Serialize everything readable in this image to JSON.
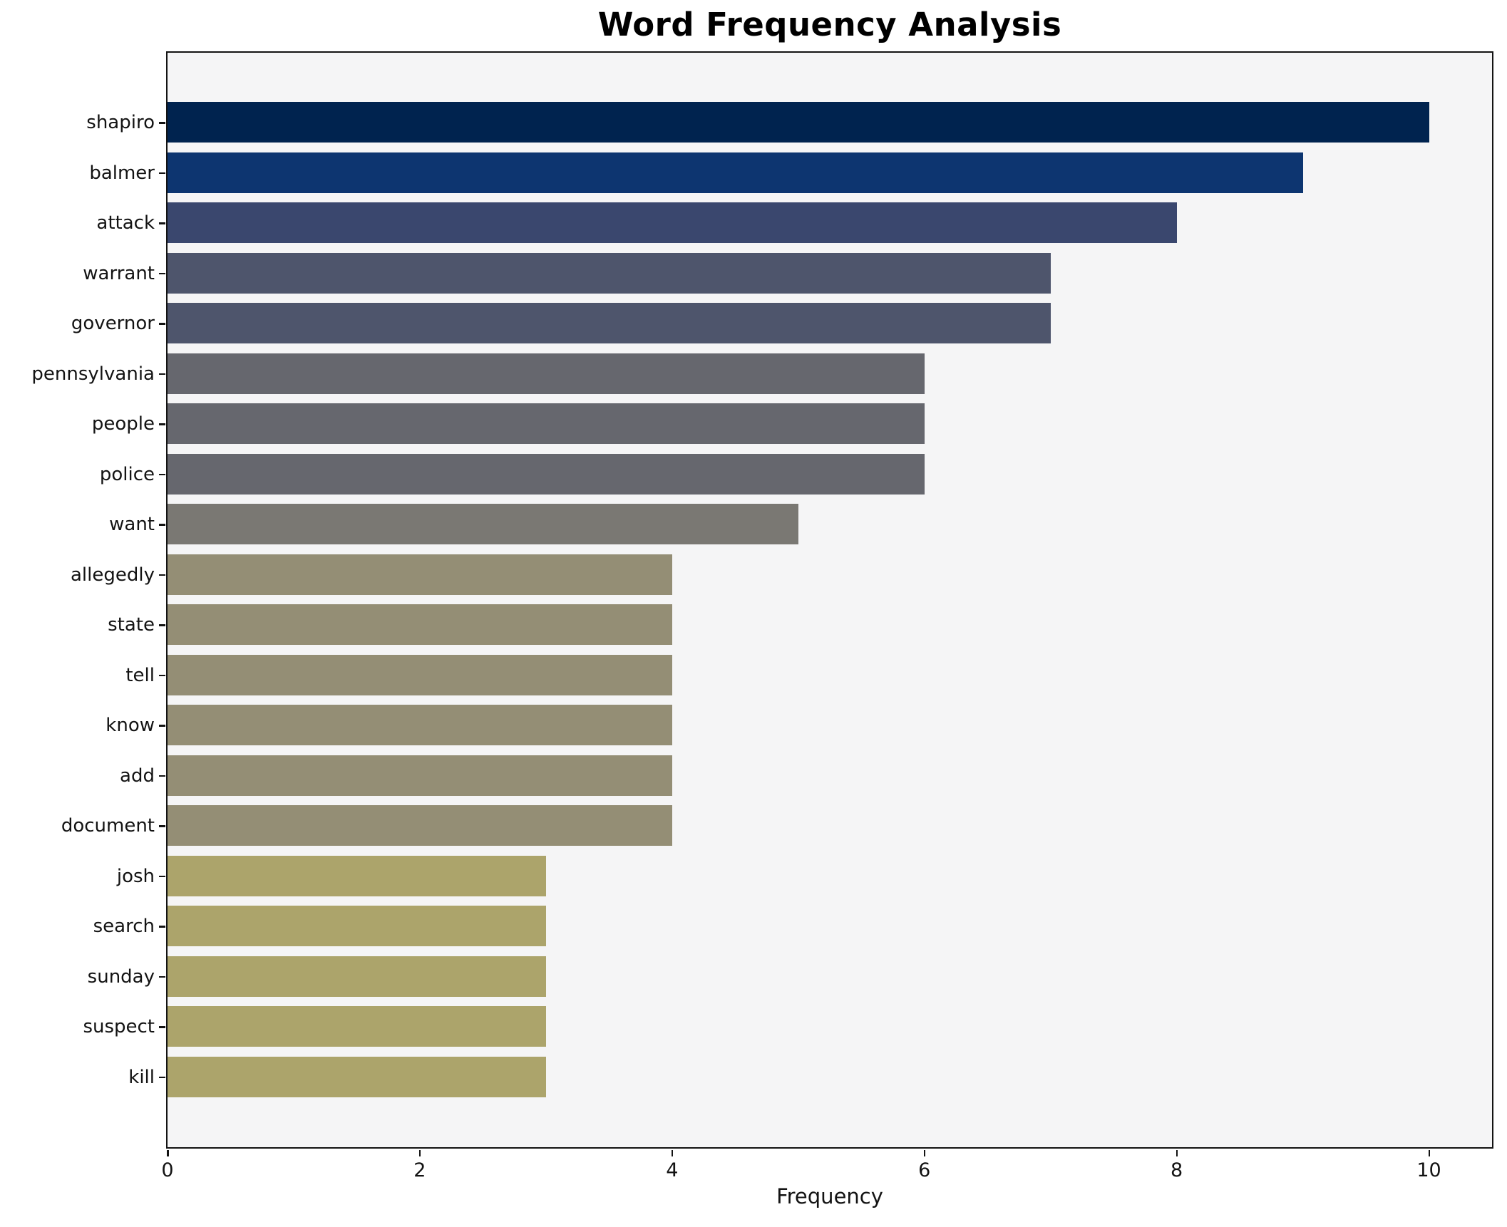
{
  "chart_data": {
    "type": "bar",
    "orientation": "horizontal",
    "title": "Word Frequency Analysis",
    "xlabel": "Frequency",
    "ylabel": "",
    "categories": [
      "shapiro",
      "balmer",
      "attack",
      "warrant",
      "governor",
      "pennsylvania",
      "people",
      "police",
      "want",
      "allegedly",
      "state",
      "tell",
      "know",
      "add",
      "document",
      "josh",
      "search",
      "sunday",
      "suspect",
      "kill"
    ],
    "values": [
      10,
      9,
      8,
      7,
      7,
      6,
      6,
      6,
      5,
      4,
      4,
      4,
      4,
      4,
      4,
      3,
      3,
      3,
      3,
      3
    ],
    "bar_colors": [
      "#00234f",
      "#0d3570",
      "#3a476e",
      "#4e556c",
      "#4e556c",
      "#66676e",
      "#66676e",
      "#66676e",
      "#7a7873",
      "#948e75",
      "#948e75",
      "#948e75",
      "#948e75",
      "#948e75",
      "#948e75",
      "#aca46b",
      "#aca46b",
      "#aca46b",
      "#aca46b",
      "#aca46b"
    ],
    "x_ticks": [
      0,
      2,
      4,
      6,
      8,
      10
    ],
    "xlim": [
      0,
      10.5
    ],
    "grid": false,
    "legend_position": "none",
    "axes_background": "#f5f5f6",
    "figure_background": "#ffffff",
    "spine_color": "#131313"
  }
}
